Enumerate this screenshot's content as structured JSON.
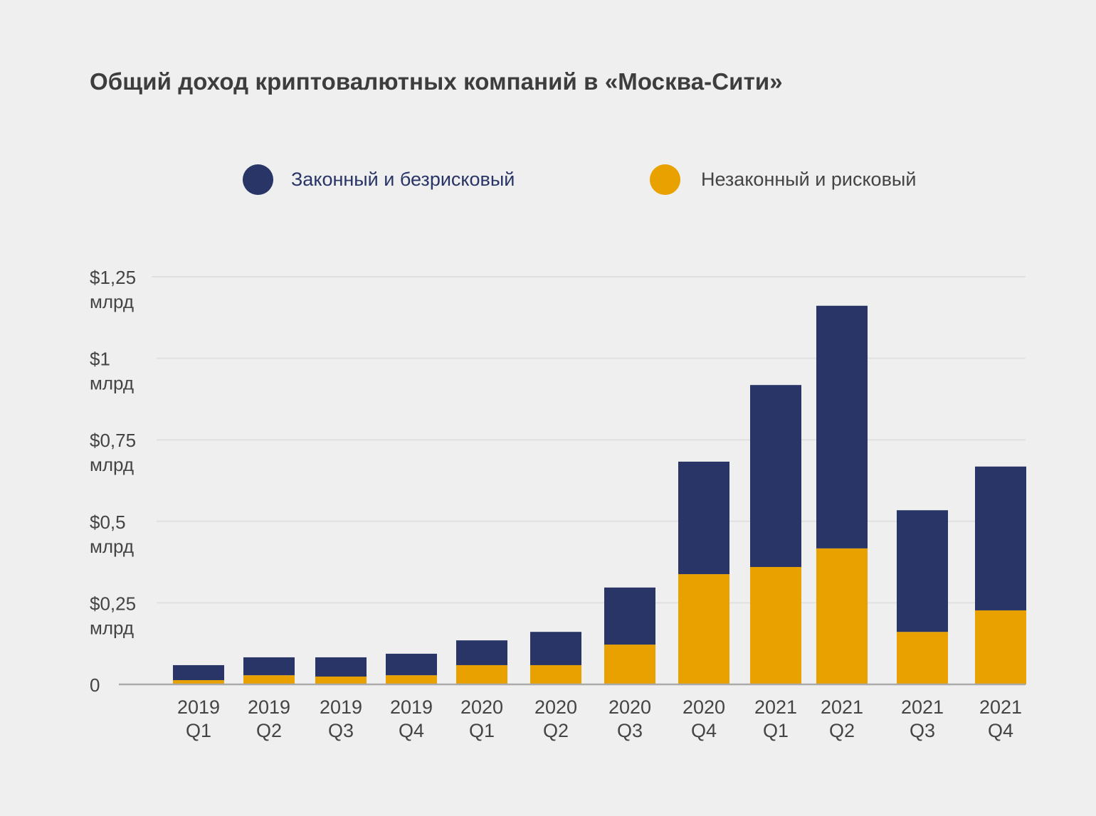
{
  "colors": {
    "background": "#efefef",
    "legal": "#283566",
    "illegal": "#e9a100",
    "grid": "#e0e0e0",
    "axis": "#aaaaaa"
  },
  "chart_data": {
    "type": "bar",
    "stacked": true,
    "title": "Общий доход криптовалютных компаний в «Москва-Сити»",
    "xlabel": "",
    "ylabel": "",
    "ylim": [
      0,
      1.25
    ],
    "grid": true,
    "legend_position": "top",
    "legend": [
      {
        "name": "Законный и безрисковый",
        "color_key": "legal"
      },
      {
        "name": "Незаконный и рисковый",
        "color_key": "illegal"
      }
    ],
    "y_ticks": [
      {
        "value": 0,
        "line1": "0",
        "line2": ""
      },
      {
        "value": 0.25,
        "line1": "$0,25",
        "line2": "млрд"
      },
      {
        "value": 0.5,
        "line1": "$0,5",
        "line2": "млрд"
      },
      {
        "value": 0.75,
        "line1": "$0,75",
        "line2": "млрд"
      },
      {
        "value": 1,
        "line1": "$1",
        "line2": "млрд"
      },
      {
        "value": 1.25,
        "line1": "$1,25",
        "line2": "млрд"
      }
    ],
    "categories": [
      {
        "year": "2019",
        "quarter": "Q1"
      },
      {
        "year": "2019",
        "quarter": "Q2"
      },
      {
        "year": "2019",
        "quarter": "Q3"
      },
      {
        "year": "2019",
        "quarter": "Q4"
      },
      {
        "year": "2020",
        "quarter": "Q1"
      },
      {
        "year": "2020",
        "quarter": "Q2"
      },
      {
        "year": "2020",
        "quarter": "Q3"
      },
      {
        "year": "2020",
        "quarter": "Q4"
      },
      {
        "year": "2021",
        "quarter": "Q1"
      },
      {
        "year": "2021",
        "quarter": "Q2"
      },
      {
        "year": "2021",
        "quarter": "Q3"
      },
      {
        "year": "2021",
        "quarter": "Q4"
      }
    ],
    "series": [
      {
        "name": "Незаконный и рисковый",
        "color_key": "illegal",
        "values": [
          0.013,
          0.028,
          0.024,
          0.028,
          0.059,
          0.059,
          0.122,
          0.338,
          0.36,
          0.417,
          0.161,
          0.227
        ]
      },
      {
        "name": "Законный и безрисковый",
        "color_key": "legal",
        "values": [
          0.046,
          0.055,
          0.059,
          0.066,
          0.076,
          0.102,
          0.175,
          0.345,
          0.558,
          0.744,
          0.373,
          0.441
        ]
      }
    ],
    "units": "млрд $"
  }
}
